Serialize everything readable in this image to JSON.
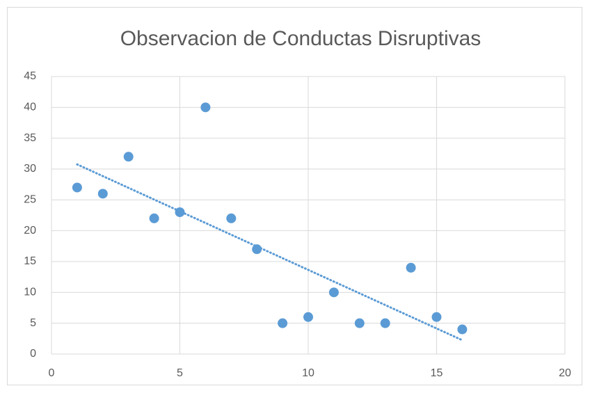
{
  "chart_data": {
    "type": "scatter",
    "title": "Observacion de Conductas Disruptivas",
    "x": [
      1,
      2,
      3,
      4,
      5,
      6,
      7,
      8,
      9,
      10,
      11,
      12,
      13,
      14,
      15,
      16
    ],
    "values": [
      27,
      26,
      32,
      22,
      23,
      40,
      22,
      17,
      5,
      6,
      10,
      5,
      5,
      14,
      6,
      4
    ],
    "color": "#5b9bd5",
    "trendline": "linear",
    "xlim": [
      0,
      20
    ],
    "xticks": [
      0,
      5,
      10,
      15,
      20
    ],
    "ylim": [
      0,
      45
    ],
    "yticks": [
      0,
      5,
      10,
      15,
      20,
      25,
      30,
      35,
      40,
      45
    ],
    "grid": true
  }
}
